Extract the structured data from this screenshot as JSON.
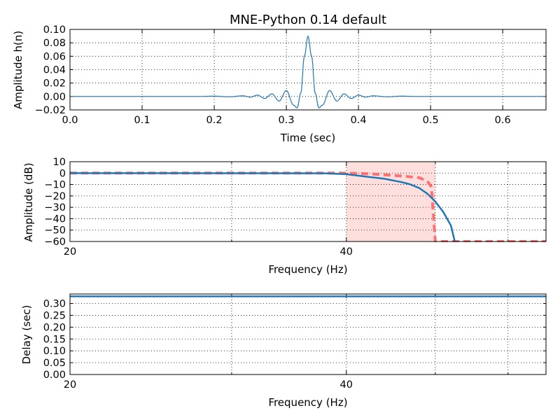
{
  "title": "MNE-Python 0.14 default",
  "colors": {
    "line": "#1f77b4",
    "ideal": "#ff7070",
    "band_fill": "#ffdede"
  },
  "chart_data": [
    {
      "type": "line",
      "name": "impulse",
      "xlabel": "Time (sec)",
      "ylabel": "Amplitude h(n)",
      "xlim": [
        0.0,
        0.66
      ],
      "ylim": [
        -0.02,
        0.1
      ],
      "xticks": [
        "0.0",
        "0.1",
        "0.2",
        "0.3",
        "0.4",
        "0.5",
        "0.6"
      ],
      "yticks": [
        "−0.02",
        "0.00",
        "0.02",
        "0.04",
        "0.06",
        "0.08",
        "0.10"
      ],
      "grid": true,
      "series": [
        {
          "x": [
            0.0,
            0.18,
            0.2,
            0.22,
            0.24,
            0.25,
            0.26,
            0.27,
            0.28,
            0.29,
            0.3,
            0.31,
            0.315,
            0.32,
            0.325,
            0.33,
            0.335,
            0.34,
            0.345,
            0.35,
            0.36,
            0.37,
            0.38,
            0.39,
            0.4,
            0.41,
            0.42,
            0.44,
            0.46,
            0.48,
            0.66
          ],
          "y": [
            0.0,
            0.0,
            0.0005,
            -0.0005,
            0.001,
            -0.001,
            0.002,
            -0.003,
            0.004,
            -0.007,
            0.009,
            -0.013,
            -0.017,
            0.005,
            0.06,
            0.09,
            0.06,
            0.005,
            -0.017,
            -0.013,
            0.009,
            -0.007,
            0.004,
            -0.003,
            0.002,
            -0.001,
            0.001,
            -0.0005,
            0.0005,
            0.0,
            0.0
          ]
        }
      ]
    },
    {
      "type": "line",
      "name": "magnitude",
      "xlabel": "Frequency (Hz)",
      "ylabel": "Amplitude (dB)",
      "xscale": "log",
      "xlim": [
        20,
        66
      ],
      "ylim": [
        -60,
        10
      ],
      "xticks": [
        "20",
        "40"
      ],
      "yticks": [
        "−60",
        "−50",
        "−40",
        "−30",
        "−20",
        "−10",
        "0",
        "10"
      ],
      "grid": true,
      "shaded_band": [
        40,
        50
      ],
      "series": [
        {
          "style": "dashed",
          "x": [
            20,
            40,
            42,
            44,
            46,
            48,
            49,
            49.5,
            50,
            50.5,
            66
          ],
          "y": [
            0,
            0,
            -0.5,
            -1.5,
            -2.5,
            -4,
            -7,
            -12,
            -60,
            -60,
            -60
          ]
        },
        {
          "style": "solid",
          "x": [
            20,
            38,
            40,
            42,
            44,
            46,
            47,
            48,
            49,
            50,
            51,
            52,
            52.5
          ],
          "y": [
            0,
            -0.2,
            -1,
            -3,
            -5,
            -8,
            -10,
            -13,
            -18,
            -25,
            -34,
            -46,
            -60
          ]
        }
      ]
    },
    {
      "type": "line",
      "name": "delay",
      "xlabel": "Frequency (Hz)",
      "ylabel": "Delay (sec)",
      "xscale": "log",
      "xlim": [
        20,
        66
      ],
      "ylim": [
        0.0,
        0.34
      ],
      "xticks": [
        "20",
        "40"
      ],
      "yticks": [
        "0.00",
        "0.05",
        "0.10",
        "0.15",
        "0.20",
        "0.25",
        "0.30"
      ],
      "grid": true,
      "series": [
        {
          "x": [
            20,
            66
          ],
          "y": [
            0.33,
            0.33
          ]
        }
      ]
    }
  ]
}
